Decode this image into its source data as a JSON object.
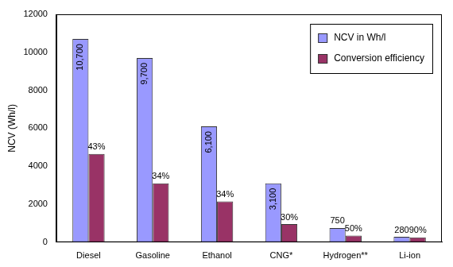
{
  "chart_data": {
    "type": "bar",
    "y_label": "NCV (Wh/l)",
    "categories": [
      "Diesel",
      "Gasoline",
      "Ethanol",
      "CNG*",
      "Hydrogen**",
      "Li-ion"
    ],
    "series": [
      {
        "name": "NCV in Wh/l",
        "color": "#9999ff",
        "values": [
          10700,
          9700,
          6100,
          3100,
          750,
          280
        ],
        "value_labels": [
          "10,700",
          "9,700",
          "6,100",
          "3,100",
          "750",
          "280"
        ]
      },
      {
        "name": "Conversion efficiency",
        "color": "#993366",
        "values": [
          4650,
          3100,
          2150,
          950,
          350,
          250
        ],
        "labels": [
          "43%",
          "34%",
          "34%",
          "30%",
          "50%",
          "90%"
        ]
      }
    ],
    "ylim": [
      0,
      12000
    ],
    "yticks": [
      0,
      2000,
      4000,
      6000,
      8000,
      10000,
      12000
    ],
    "grid": false,
    "legend": "top-right",
    "data_labels": true
  }
}
